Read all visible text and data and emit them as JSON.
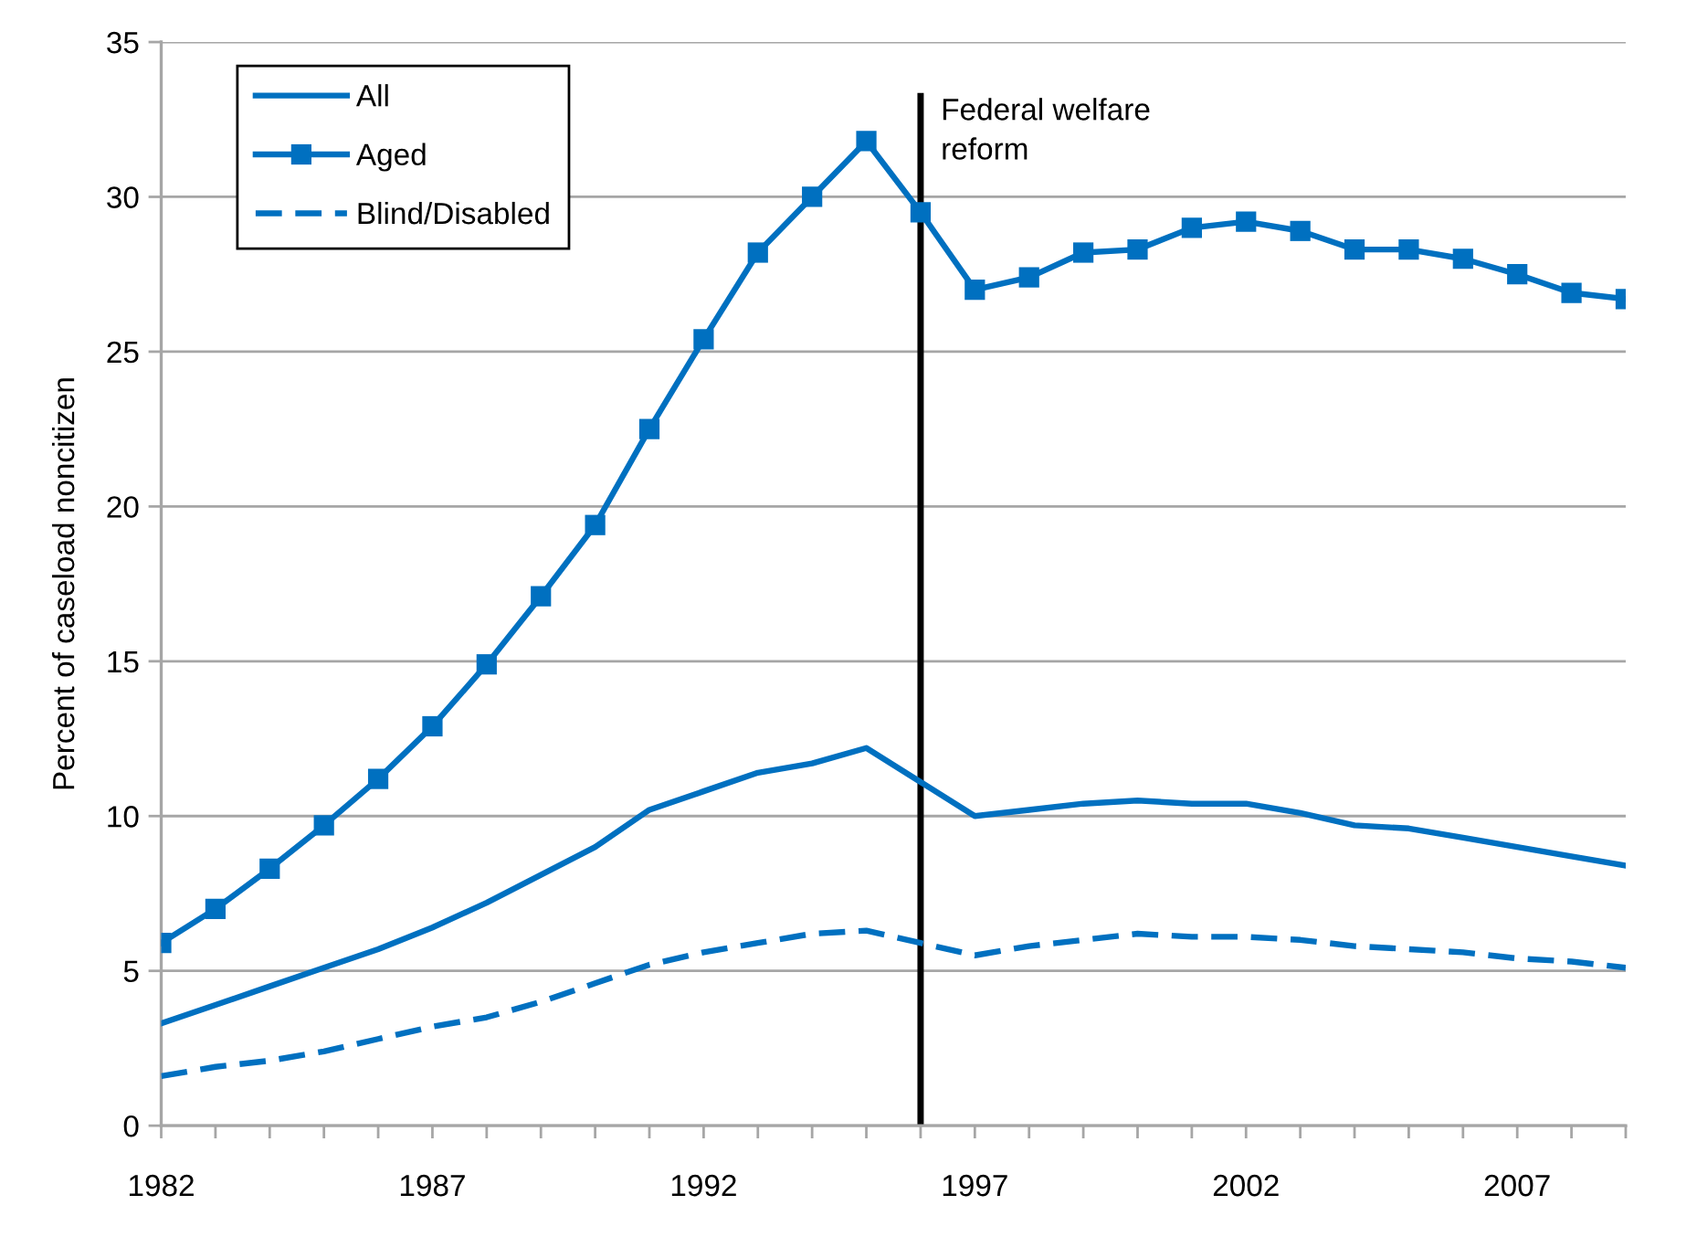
{
  "chart_data": {
    "type": "line",
    "ylabel": "Percent of caseload noncitizen",
    "x": [
      1982,
      1983,
      1984,
      1985,
      1986,
      1987,
      1988,
      1989,
      1990,
      1991,
      1992,
      1993,
      1994,
      1995,
      1996,
      1997,
      1998,
      1999,
      2000,
      2001,
      2002,
      2003,
      2004,
      2005,
      2006,
      2007,
      2008,
      2009
    ],
    "series": [
      {
        "name": "All",
        "color": "#0070c0",
        "marker": "none",
        "line_style": "solid",
        "values": [
          3.3,
          3.9,
          4.5,
          5.1,
          5.7,
          6.4,
          7.2,
          8.1,
          9.0,
          10.2,
          10.8,
          11.4,
          11.7,
          12.2,
          11.1,
          10.0,
          10.2,
          10.4,
          10.5,
          10.4,
          10.4,
          10.1,
          9.7,
          9.6,
          9.3,
          9.0,
          8.7,
          8.4
        ]
      },
      {
        "name": "Aged",
        "color": "#0070c0",
        "marker": "square",
        "line_style": "solid",
        "values": [
          5.9,
          7.0,
          8.3,
          9.7,
          11.2,
          12.9,
          14.9,
          17.1,
          19.4,
          22.5,
          25.4,
          28.2,
          30.0,
          31.8,
          29.5,
          27.0,
          27.4,
          28.2,
          28.3,
          29.0,
          29.2,
          28.9,
          28.3,
          28.3,
          28.0,
          27.5,
          26.9,
          26.7
        ]
      },
      {
        "name": "Blind/Disabled",
        "color": "#0070c0",
        "marker": "none",
        "line_style": "dashed",
        "values": [
          1.6,
          1.9,
          2.1,
          2.4,
          2.8,
          3.2,
          3.5,
          4.0,
          4.6,
          5.2,
          5.6,
          5.9,
          6.2,
          6.3,
          5.9,
          5.5,
          5.8,
          6.0,
          6.2,
          6.1,
          6.1,
          6.0,
          5.8,
          5.7,
          5.6,
          5.4,
          5.3,
          5.1
        ]
      }
    ],
    "xlim": [
      1982,
      2009
    ],
    "xticks": [
      1982,
      {
        "value": 1983,
        "label": null
      },
      {
        "value": 1984,
        "label": null
      },
      {
        "value": 1985,
        "label": null
      },
      {
        "value": 1986,
        "label": null
      },
      1987,
      {
        "value": 1988,
        "label": null
      },
      {
        "value": 1989,
        "label": null
      },
      {
        "value": 1990,
        "label": null
      },
      {
        "value": 1991,
        "label": null
      },
      1992,
      {
        "value": 1993,
        "label": null
      },
      {
        "value": 1994,
        "label": null
      },
      {
        "value": 1995,
        "label": null
      },
      {
        "value": 1996,
        "label": null
      },
      1997,
      {
        "value": 1998,
        "label": null
      },
      {
        "value": 1999,
        "label": null
      },
      {
        "value": 2000,
        "label": null
      },
      {
        "value": 2001,
        "label": null
      },
      2002,
      {
        "value": 2003,
        "label": null
      },
      {
        "value": 2004,
        "label": null
      },
      {
        "value": 2005,
        "label": null
      },
      {
        "value": 2006,
        "label": null
      },
      2007,
      {
        "value": 2008,
        "label": null
      },
      {
        "value": 2009,
        "label": null
      }
    ],
    "ylim": [
      0,
      35
    ],
    "yticks": [
      0,
      5,
      10,
      15,
      20,
      25,
      30,
      35
    ],
    "ref_lines": [
      {
        "axis": "x",
        "value": 1996,
        "label": "Federal welfare\nreform",
        "color": "#000000",
        "line_style": "solid"
      }
    ],
    "grid": "y",
    "legend": "top left"
  }
}
